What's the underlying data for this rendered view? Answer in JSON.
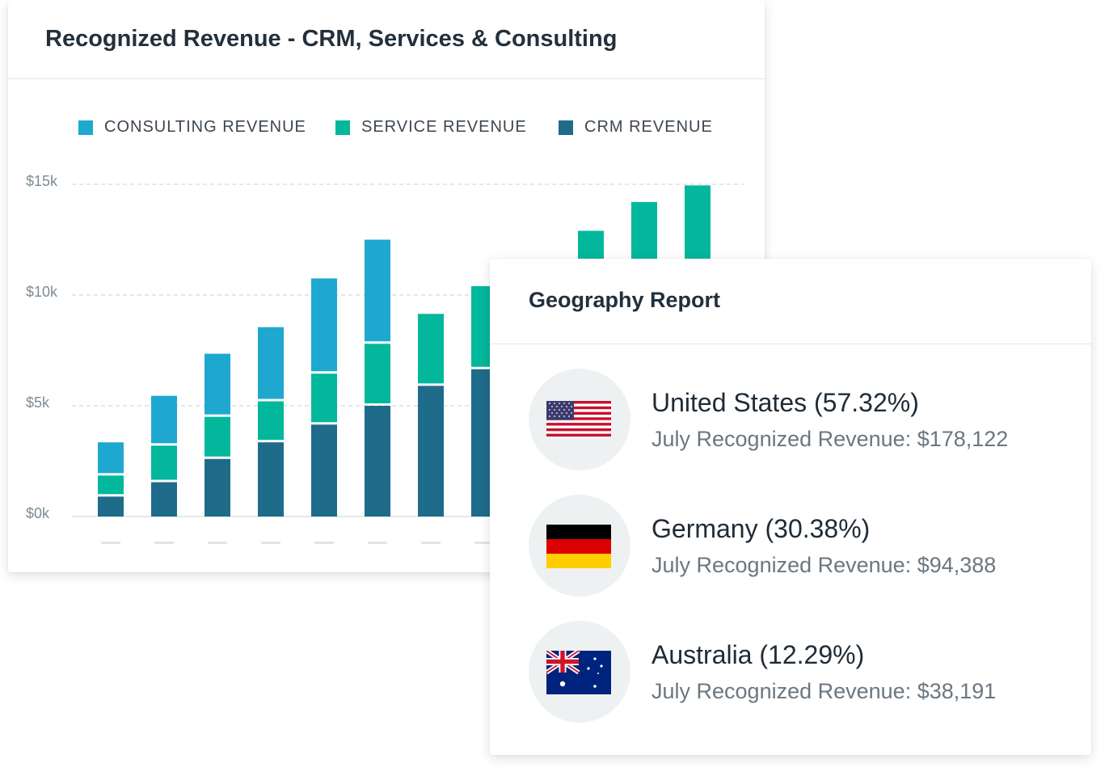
{
  "revenue_card": {
    "title": "Recognized Revenue - CRM, Services & Consulting"
  },
  "colors": {
    "consulting": "#1fa8cf",
    "service": "#03b79c",
    "crm": "#1f6b8a",
    "grid": "#c9d0d5"
  },
  "chart_data": {
    "type": "bar",
    "stacked": true,
    "title": "Recognized Revenue - CRM, Services & Consulting",
    "xlabel": "",
    "ylabel": "",
    "ylim": [
      0,
      15000
    ],
    "y_ticks": [
      {
        "value": 0,
        "label": "$0k"
      },
      {
        "value": 5000,
        "label": "$5k"
      },
      {
        "value": 10000,
        "label": "$10k"
      },
      {
        "value": 15000,
        "label": "$15k"
      }
    ],
    "grid": true,
    "legend_position": "top",
    "categories": [
      "",
      "",
      "",
      "",
      "",
      "",
      "",
      "",
      "",
      "",
      "",
      ""
    ],
    "series": [
      {
        "name": "CRM REVENUE",
        "color_key": "crm",
        "values": [
          900,
          1550,
          2600,
          3350,
          4150,
          5000,
          5900,
          6650,
          null,
          null,
          null,
          null
        ]
      },
      {
        "name": "SERVICE REVENUE",
        "color_key": "service",
        "values": [
          950,
          1650,
          1900,
          1850,
          2300,
          2800,
          3250,
          3750,
          null,
          12900,
          14200,
          14950
        ]
      },
      {
        "name": "CONSULTING REVENUE",
        "color_key": "consulting",
        "values": [
          1500,
          2250,
          2850,
          3350,
          4300,
          4700,
          0,
          0,
          null,
          null,
          null,
          null
        ]
      }
    ]
  },
  "legend": [
    {
      "label": "CONSULTING REVENUE",
      "color_key": "consulting"
    },
    {
      "label": "SERVICE REVENUE",
      "color_key": "service"
    },
    {
      "label": "CRM REVENUE",
      "color_key": "crm"
    }
  ],
  "geo_card": {
    "title": "Geography Report",
    "rows": [
      {
        "country": "United States (57.32%)",
        "revenue": "July Recognized Revenue: $178,122",
        "flag": "us-flag-icon"
      },
      {
        "country": "Germany (30.38%)",
        "revenue": "July Recognized Revenue: $94,388",
        "flag": "germany-flag-icon"
      },
      {
        "country": "Australia (12.29%)",
        "revenue": "July Recognized Revenue: $38,191",
        "flag": "australia-flag-icon"
      }
    ]
  }
}
